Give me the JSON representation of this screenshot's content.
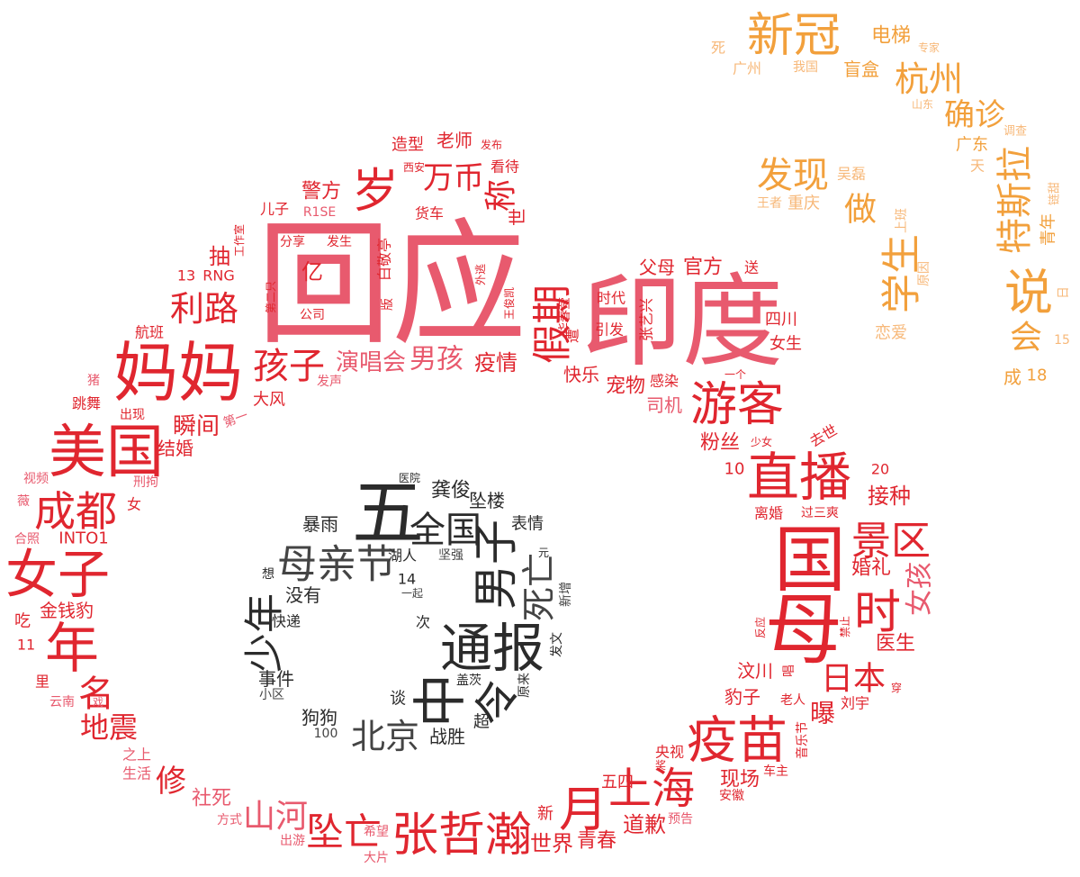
{
  "palette": {
    "inner": "#2b2b2b",
    "middle_red": "#e0262f",
    "middle_pink": "#e85a6e",
    "outer_orange": "#f2a03c",
    "outer_light": "#f7b879"
  },
  "words": [
    {
      "text": "新冠",
      "size": 52,
      "color": "#f2a03c"
    },
    {
      "text": "电梯",
      "size": 22,
      "color": "#f2a03c"
    },
    {
      "text": "专家",
      "size": 12,
      "color": "#f7b879"
    },
    {
      "text": "死",
      "size": 16,
      "color": "#f7b879"
    },
    {
      "text": "广州",
      "size": 16,
      "color": "#f7b879"
    },
    {
      "text": "我国",
      "size": 14,
      "color": "#f7b879"
    },
    {
      "text": "盲盒",
      "size": 20,
      "color": "#f2a03c"
    },
    {
      "text": "杭州",
      "size": 38,
      "color": "#f2a03c"
    },
    {
      "text": "山东",
      "size": 12,
      "color": "#f7b879"
    },
    {
      "text": "确诊",
      "size": 34,
      "color": "#f2a03c"
    },
    {
      "text": "调查",
      "size": 13,
      "color": "#f7b879"
    },
    {
      "text": "广东",
      "size": 18,
      "color": "#f2a03c"
    },
    {
      "text": "天",
      "size": 16,
      "color": "#f7b879"
    },
    {
      "text": "特斯拉",
      "size": 40,
      "color": "#f2a03c"
    },
    {
      "text": "链甜",
      "size": 13,
      "color": "#f7b879"
    },
    {
      "text": "青年",
      "size": 18,
      "color": "#f2a03c"
    },
    {
      "text": "日",
      "size": 14,
      "color": "#f7b879"
    },
    {
      "text": "发现",
      "size": 40,
      "color": "#f2a03c"
    },
    {
      "text": "吴磊",
      "size": 16,
      "color": "#f7b879"
    },
    {
      "text": "王者",
      "size": 14,
      "color": "#f7b879"
    },
    {
      "text": "重庆",
      "size": 18,
      "color": "#f7b879"
    },
    {
      "text": "做",
      "size": 36,
      "color": "#f2a03c"
    },
    {
      "text": "上班",
      "size": 14,
      "color": "#f7b879"
    },
    {
      "text": "学生",
      "size": 44,
      "color": "#f2a03c"
    },
    {
      "text": "原因",
      "size": 14,
      "color": "#f7b879"
    },
    {
      "text": "说",
      "size": 54,
      "color": "#f2a03c"
    },
    {
      "text": "恋爱",
      "size": 18,
      "color": "#f7b879"
    },
    {
      "text": "会",
      "size": 36,
      "color": "#f2a03c"
    },
    {
      "text": "15",
      "size": 14,
      "color": "#f7b879"
    },
    {
      "text": "成",
      "size": 20,
      "color": "#f2a03c"
    },
    {
      "text": "18",
      "size": 18,
      "color": "#f2a03c"
    },
    {
      "text": "回应",
      "size": 150,
      "color": "#e85a6e"
    },
    {
      "text": "印度",
      "size": 112,
      "color": "#e85a6e"
    },
    {
      "text": "妈妈",
      "size": 72,
      "color": "#e0262f"
    },
    {
      "text": "美国",
      "size": 64,
      "color": "#e0262f"
    },
    {
      "text": "成都",
      "size": 46,
      "color": "#e0262f"
    },
    {
      "text": "女子",
      "size": 58,
      "color": "#e0262f"
    },
    {
      "text": "年",
      "size": 60,
      "color": "#e0262f"
    },
    {
      "text": "名",
      "size": 40,
      "color": "#e0262f"
    },
    {
      "text": "地震",
      "size": 32,
      "color": "#e0262f"
    },
    {
      "text": "修",
      "size": 34,
      "color": "#e0262f"
    },
    {
      "text": "社死",
      "size": 22,
      "color": "#e85a6e"
    },
    {
      "text": "山河",
      "size": 36,
      "color": "#e85a6e"
    },
    {
      "text": "坠亡",
      "size": 42,
      "color": "#e0262f"
    },
    {
      "text": "张哲瀚",
      "size": 52,
      "color": "#e0262f"
    },
    {
      "text": "世界",
      "size": 24,
      "color": "#e0262f"
    },
    {
      "text": "青春",
      "size": 22,
      "color": "#e0262f"
    },
    {
      "text": "道歉",
      "size": 24,
      "color": "#e0262f"
    },
    {
      "text": "月",
      "size": 54,
      "color": "#e0262f"
    },
    {
      "text": "上海",
      "size": 48,
      "color": "#e0262f"
    },
    {
      "text": "现场",
      "size": 22,
      "color": "#e0262f"
    },
    {
      "text": "疫苗",
      "size": 56,
      "color": "#e0262f"
    },
    {
      "text": "日本",
      "size": 36,
      "color": "#e0262f"
    },
    {
      "text": "曝",
      "size": 28,
      "color": "#e0262f"
    },
    {
      "text": "医生",
      "size": 22,
      "color": "#e0262f"
    },
    {
      "text": "时",
      "size": 52,
      "color": "#e0262f"
    },
    {
      "text": "国",
      "size": 80,
      "color": "#e0262f"
    },
    {
      "text": "母",
      "size": 86,
      "color": "#e0262f"
    },
    {
      "text": "景区",
      "size": 44,
      "color": "#e0262f"
    },
    {
      "text": "女孩",
      "size": 30,
      "color": "#e85a6e"
    },
    {
      "text": "婚礼",
      "size": 22,
      "color": "#e0262f"
    },
    {
      "text": "接种",
      "size": 24,
      "color": "#e0262f"
    },
    {
      "text": "直播",
      "size": 58,
      "color": "#e0262f"
    },
    {
      "text": "游客",
      "size": 52,
      "color": "#e0262f"
    },
    {
      "text": "假期",
      "size": 44,
      "color": "#e0262f"
    },
    {
      "text": "父母",
      "size": 20,
      "color": "#e0262f"
    },
    {
      "text": "官方",
      "size": 22,
      "color": "#e0262f"
    },
    {
      "text": "送",
      "size": 16,
      "color": "#e0262f"
    },
    {
      "text": "四川",
      "size": 18,
      "color": "#e0262f"
    },
    {
      "text": "女生",
      "size": 18,
      "color": "#e0262f"
    },
    {
      "text": "宠物",
      "size": 22,
      "color": "#e0262f"
    },
    {
      "text": "司机",
      "size": 20,
      "color": "#e85a6e"
    },
    {
      "text": "快乐",
      "size": 20,
      "color": "#e0262f"
    },
    {
      "text": "时代",
      "size": 16,
      "color": "#e0262f"
    },
    {
      "text": "引发",
      "size": 16,
      "color": "#e0262f"
    },
    {
      "text": "粉丝",
      "size": 22,
      "color": "#e0262f"
    },
    {
      "text": "少女",
      "size": 12,
      "color": "#e0262f"
    },
    {
      "text": "去世",
      "size": 16,
      "color": "#e0262f"
    },
    {
      "text": "10",
      "size": 18,
      "color": "#e0262f"
    },
    {
      "text": "20",
      "size": 16,
      "color": "#e0262f"
    },
    {
      "text": "离婚",
      "size": 16,
      "color": "#e0262f"
    },
    {
      "text": "过三爽",
      "size": 14,
      "color": "#e0262f"
    },
    {
      "text": "汶川",
      "size": 20,
      "color": "#e0262f"
    },
    {
      "text": "豹子",
      "size": 20,
      "color": "#e0262f"
    },
    {
      "text": "老人",
      "size": 14,
      "color": "#e0262f"
    },
    {
      "text": "刘宇",
      "size": 16,
      "color": "#e0262f"
    },
    {
      "text": "音乐节",
      "size": 14,
      "color": "#e0262f"
    },
    {
      "text": "央视",
      "size": 16,
      "color": "#e0262f"
    },
    {
      "text": "车主",
      "size": 14,
      "color": "#e0262f"
    },
    {
      "text": "安徽",
      "size": 14,
      "color": "#e0262f"
    },
    {
      "text": "预告",
      "size": 14,
      "color": "#e85a6e"
    },
    {
      "text": "五四",
      "size": 18,
      "color": "#e0262f"
    },
    {
      "text": "新",
      "size": 18,
      "color": "#e0262f"
    },
    {
      "text": "希望",
      "size": 14,
      "color": "#e85a6e"
    },
    {
      "text": "大片",
      "size": 14,
      "color": "#e85a6e"
    },
    {
      "text": "出游",
      "size": 14,
      "color": "#e85a6e"
    },
    {
      "text": "方式",
      "size": 14,
      "color": "#e85a6e"
    },
    {
      "text": "之上",
      "size": 16,
      "color": "#e85a6e"
    },
    {
      "text": "生活",
      "size": 16,
      "color": "#e85a6e"
    },
    {
      "text": "云南",
      "size": 14,
      "color": "#e85a6e"
    },
    {
      "text": "戏",
      "size": 12,
      "color": "#e85a6e"
    },
    {
      "text": "里",
      "size": 16,
      "color": "#e0262f"
    },
    {
      "text": "11",
      "size": 16,
      "color": "#e0262f"
    },
    {
      "text": "吃",
      "size": 18,
      "color": "#e0262f"
    },
    {
      "text": "金钱豹",
      "size": 20,
      "color": "#e0262f"
    },
    {
      "text": "合照",
      "size": 14,
      "color": "#e85a6e"
    },
    {
      "text": "INTO1",
      "size": 18,
      "color": "#e0262f"
    },
    {
      "text": "薇",
      "size": 14,
      "color": "#e85a6e"
    },
    {
      "text": "女",
      "size": 16,
      "color": "#e0262f"
    },
    {
      "text": "视频",
      "size": 14,
      "color": "#e85a6e"
    },
    {
      "text": "刑拘",
      "size": 14,
      "color": "#e85a6e"
    },
    {
      "text": "结婚",
      "size": 20,
      "color": "#e0262f"
    },
    {
      "text": "瞬间",
      "size": 26,
      "color": "#e0262f"
    },
    {
      "text": "出现",
      "size": 14,
      "color": "#e0262f"
    },
    {
      "text": "第一",
      "size": 14,
      "color": "#e85a6e"
    },
    {
      "text": "跳舞",
      "size": 16,
      "color": "#e0262f"
    },
    {
      "text": "大风",
      "size": 18,
      "color": "#e0262f"
    },
    {
      "text": "猪",
      "size": 14,
      "color": "#e85a6e"
    },
    {
      "text": "发声",
      "size": 14,
      "color": "#e85a6e"
    },
    {
      "text": "航班",
      "size": 16,
      "color": "#e0262f"
    },
    {
      "text": "孩子",
      "size": 40,
      "color": "#e0262f"
    },
    {
      "text": "演唱会",
      "size": 26,
      "color": "#e85a6e"
    },
    {
      "text": "男孩",
      "size": 30,
      "color": "#e85a6e"
    },
    {
      "text": "疫情",
      "size": 24,
      "color": "#e0262f"
    },
    {
      "text": "利路",
      "size": 38,
      "color": "#e0262f"
    },
    {
      "text": "13",
      "size": 16,
      "color": "#e0262f"
    },
    {
      "text": "RNG",
      "size": 16,
      "color": "#e0262f"
    },
    {
      "text": "抽",
      "size": 24,
      "color": "#e0262f"
    },
    {
      "text": "工作室",
      "size": 12,
      "color": "#e0262f"
    },
    {
      "text": "儿子",
      "size": 16,
      "color": "#e0262f"
    },
    {
      "text": "R1SE",
      "size": 14,
      "color": "#e85a6e"
    },
    {
      "text": "分享",
      "size": 14,
      "color": "#e0262f"
    },
    {
      "text": "发生",
      "size": 14,
      "color": "#e0262f"
    },
    {
      "text": "亿",
      "size": 24,
      "color": "#e0262f"
    },
    {
      "text": "公司",
      "size": 14,
      "color": "#e0262f"
    },
    {
      "text": "第二只",
      "size": 12,
      "color": "#e0262f"
    },
    {
      "text": "岁",
      "size": 52,
      "color": "#e0262f"
    },
    {
      "text": "警方",
      "size": 22,
      "color": "#e0262f"
    },
    {
      "text": "万币",
      "size": 34,
      "color": "#e0262f"
    },
    {
      "text": "造型",
      "size": 18,
      "color": "#e0262f"
    },
    {
      "text": "老师",
      "size": 20,
      "color": "#e0262f"
    },
    {
      "text": "发布",
      "size": 12,
      "color": "#e0262f"
    },
    {
      "text": "西安",
      "size": 12,
      "color": "#e0262f"
    },
    {
      "text": "看待",
      "size": 16,
      "color": "#e0262f"
    },
    {
      "text": "称",
      "size": 36,
      "color": "#e0262f"
    },
    {
      "text": "世",
      "size": 20,
      "color": "#e0262f"
    },
    {
      "text": "货车",
      "size": 16,
      "color": "#e0262f"
    },
    {
      "text": "白敬亭",
      "size": 16,
      "color": "#e0262f"
    },
    {
      "text": "版",
      "size": 14,
      "color": "#e0262f"
    },
    {
      "text": "外逃",
      "size": 12,
      "color": "#e0262f"
    },
    {
      "text": "王俊凯",
      "size": 12,
      "color": "#e0262f"
    },
    {
      "text": "华春莹",
      "size": 14,
      "color": "#e0262f"
    },
    {
      "text": "遭",
      "size": 16,
      "color": "#e0262f"
    },
    {
      "text": "张艺兴",
      "size": 16,
      "color": "#e0262f"
    },
    {
      "text": "一个",
      "size": 12,
      "color": "#e0262f"
    },
    {
      "text": "感染",
      "size": 16,
      "color": "#e0262f"
    },
    {
      "text": "禁止",
      "size": 12,
      "color": "#e0262f"
    },
    {
      "text": "反应",
      "size": 12,
      "color": "#e0262f"
    },
    {
      "text": "唱",
      "size": 14,
      "color": "#e0262f"
    },
    {
      "text": "穿",
      "size": 12,
      "color": "#e0262f"
    },
    {
      "text": "奖",
      "size": 12,
      "color": "#e0262f"
    },
    {
      "text": "五",
      "size": 80,
      "color": "#2b2b2b"
    },
    {
      "text": "全国",
      "size": 40,
      "color": "#2b2b2b"
    },
    {
      "text": "母亲节",
      "size": 44,
      "color": "#444444"
    },
    {
      "text": "男子",
      "size": 50,
      "color": "#2b2b2b"
    },
    {
      "text": "死亡",
      "size": 38,
      "color": "#444444"
    },
    {
      "text": "通报",
      "size": 58,
      "color": "#2b2b2b"
    },
    {
      "text": "中",
      "size": 60,
      "color": "#2b2b2b"
    },
    {
      "text": "令",
      "size": 50,
      "color": "#2b2b2b"
    },
    {
      "text": "少年",
      "size": 44,
      "color": "#2b2b2b"
    },
    {
      "text": "北京",
      "size": 38,
      "color": "#444444"
    },
    {
      "text": "龚俊",
      "size": 22,
      "color": "#2b2b2b"
    },
    {
      "text": "坠楼",
      "size": 20,
      "color": "#2b2b2b"
    },
    {
      "text": "医院",
      "size": 12,
      "color": "#2b2b2b"
    },
    {
      "text": "暴雨",
      "size": 20,
      "color": "#2b2b2b"
    },
    {
      "text": "表情",
      "size": 18,
      "color": "#2b2b2b"
    },
    {
      "text": "湖人",
      "size": 16,
      "color": "#2b2b2b"
    },
    {
      "text": "坚强",
      "size": 14,
      "color": "#444444"
    },
    {
      "text": "元",
      "size": 12,
      "color": "#2b2b2b"
    },
    {
      "text": "14",
      "size": 16,
      "color": "#2b2b2b"
    },
    {
      "text": "一起",
      "size": 12,
      "color": "#444444"
    },
    {
      "text": "想",
      "size": 14,
      "color": "#2b2b2b"
    },
    {
      "text": "没有",
      "size": 20,
      "color": "#2b2b2b"
    },
    {
      "text": "快递",
      "size": 16,
      "color": "#2b2b2b"
    },
    {
      "text": "新增",
      "size": 14,
      "color": "#444444"
    },
    {
      "text": "次",
      "size": 16,
      "color": "#2b2b2b"
    },
    {
      "text": "发文",
      "size": 14,
      "color": "#2b2b2b"
    },
    {
      "text": "事件",
      "size": 20,
      "color": "#2b2b2b"
    },
    {
      "text": "小区",
      "size": 14,
      "color": "#444444"
    },
    {
      "text": "盖茨",
      "size": 14,
      "color": "#2b2b2b"
    },
    {
      "text": "原来",
      "size": 14,
      "color": "#2b2b2b"
    },
    {
      "text": "谈",
      "size": 18,
      "color": "#2b2b2b"
    },
    {
      "text": "狗狗",
      "size": 20,
      "color": "#2b2b2b"
    },
    {
      "text": "100",
      "size": 14,
      "color": "#444444"
    },
    {
      "text": "战胜",
      "size": 20,
      "color": "#2b2b2b"
    },
    {
      "text": "超",
      "size": 18,
      "color": "#2b2b2b"
    }
  ]
}
